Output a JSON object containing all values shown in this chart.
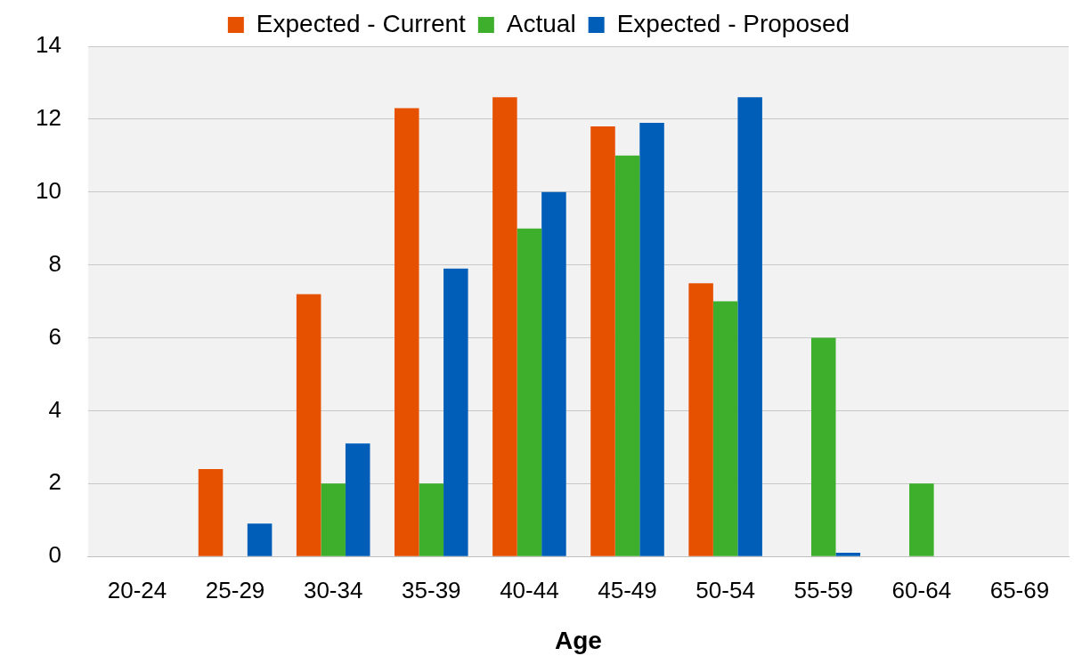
{
  "chart_data": {
    "type": "bar",
    "xlabel": "Age",
    "categories": [
      "20-24",
      "25-29",
      "30-34",
      "35-39",
      "40-44",
      "45-49",
      "50-54",
      "55-59",
      "60-64",
      "65-69"
    ],
    "series": [
      {
        "name": "Expected - Current",
        "color": "#e65100",
        "values": [
          0,
          2.4,
          7.2,
          12.3,
          12.6,
          11.8,
          7.5,
          0,
          0,
          0
        ]
      },
      {
        "name": "Actual",
        "color": "#3daf2c",
        "values": [
          0,
          0,
          2,
          2,
          9,
          11,
          7,
          6,
          2,
          0
        ]
      },
      {
        "name": "Expected - Proposed",
        "color": "#005eb8",
        "values": [
          0,
          0.9,
          3.1,
          7.9,
          10,
          11.9,
          12.6,
          0.1,
          0,
          0
        ]
      }
    ],
    "ylim": [
      0,
      14
    ],
    "yticks": [
      0,
      2,
      4,
      6,
      8,
      10,
      12,
      14
    ],
    "grid": "y",
    "legend": "top"
  }
}
